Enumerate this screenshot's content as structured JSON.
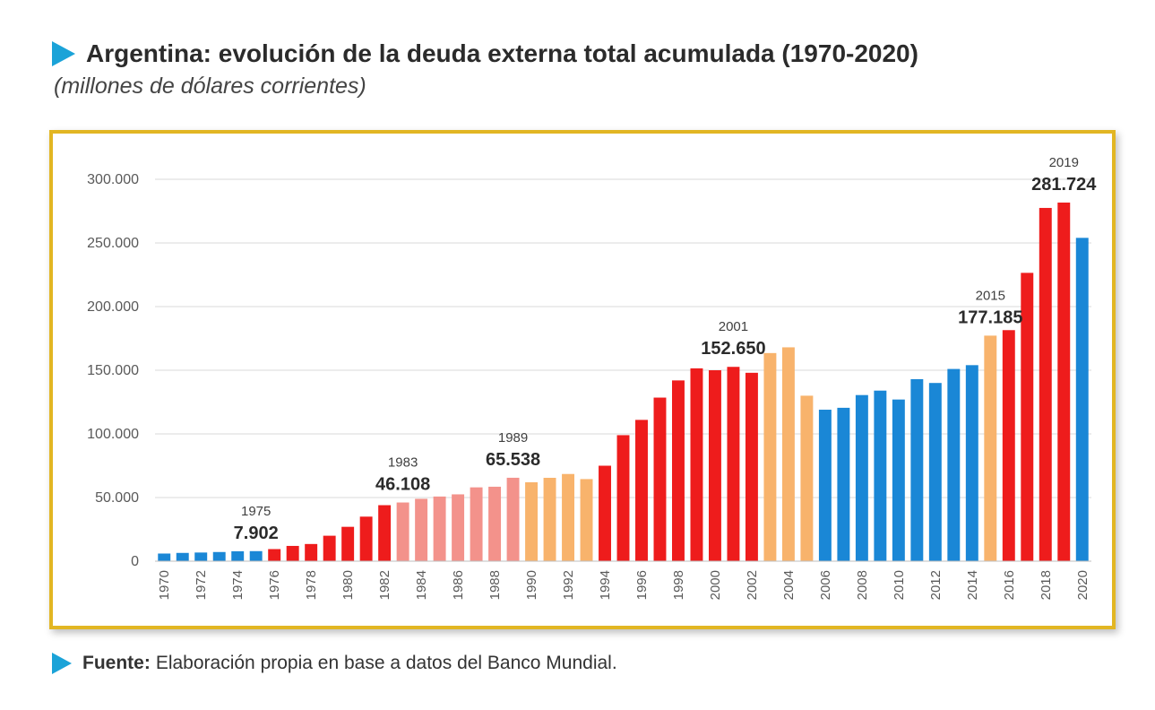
{
  "header": {
    "title": "Argentina: evolución de la deuda externa total acumulada (1970-2020)",
    "subtitle": "(millones de dólares corrientes)"
  },
  "source": {
    "label": "Fuente:",
    "text": "Elaboración propia en base a datos del Banco Mundial."
  },
  "colors": {
    "blue": "#1a87d6",
    "red": "#ee1c1c",
    "pink": "#f3928b",
    "orange": "#f8b36c",
    "frame": "#e2b623",
    "marker": "#1ba3d8"
  },
  "chart_data": {
    "type": "bar",
    "title": "",
    "xlabel": "",
    "ylabel": "",
    "ylim": [
      0,
      300000
    ],
    "yticks": [
      0,
      50000,
      100000,
      150000,
      200000,
      250000,
      300000
    ],
    "ytick_labels": [
      "0",
      "50.000",
      "100.000",
      "150.000",
      "200.000",
      "250.000",
      "300.000"
    ],
    "grid": true,
    "categories": [
      "1970",
      "1971",
      "1972",
      "1973",
      "1974",
      "1975",
      "1976",
      "1977",
      "1978",
      "1979",
      "1980",
      "1981",
      "1982",
      "1983",
      "1984",
      "1985",
      "1986",
      "1987",
      "1988",
      "1989",
      "1990",
      "1991",
      "1992",
      "1993",
      "1994",
      "1995",
      "1996",
      "1997",
      "1998",
      "1999",
      "2000",
      "2001",
      "2002",
      "2003",
      "2004",
      "2005",
      "2006",
      "2007",
      "2008",
      "2009",
      "2010",
      "2011",
      "2012",
      "2013",
      "2014",
      "2015",
      "2016",
      "2017",
      "2018",
      "2019",
      "2020"
    ],
    "x_tick_labels": [
      "1970",
      "1972",
      "1974",
      "1976",
      "1978",
      "1980",
      "1982",
      "1984",
      "1986",
      "1988",
      "1990",
      "1992",
      "1994",
      "1996",
      "1998",
      "2000",
      "2002",
      "2004",
      "2006",
      "2008",
      "2010",
      "2012",
      "2014",
      "2016",
      "2018",
      "2020"
    ],
    "values": [
      6000,
      6500,
      6800,
      7200,
      7800,
      7902,
      9500,
      12000,
      13500,
      20000,
      27000,
      35000,
      44000,
      46108,
      49000,
      50800,
      52500,
      58000,
      58500,
      65538,
      62000,
      65500,
      68500,
      64500,
      75000,
      99000,
      111000,
      128500,
      142000,
      151500,
      150000,
      152650,
      148000,
      163500,
      168000,
      130000,
      119000,
      120500,
      130500,
      134000,
      127000,
      143000,
      140000,
      151000,
      154000,
      177185,
      181500,
      226500,
      277500,
      281724,
      254000
    ],
    "color_keys": [
      "blue",
      "blue",
      "blue",
      "blue",
      "blue",
      "blue",
      "red",
      "red",
      "red",
      "red",
      "red",
      "red",
      "red",
      "pink",
      "pink",
      "pink",
      "pink",
      "pink",
      "pink",
      "pink",
      "orange",
      "orange",
      "orange",
      "orange",
      "red",
      "red",
      "red",
      "red",
      "red",
      "red",
      "red",
      "red",
      "red",
      "orange",
      "orange",
      "orange",
      "blue",
      "blue",
      "blue",
      "blue",
      "blue",
      "blue",
      "blue",
      "blue",
      "blue",
      "orange",
      "red",
      "red",
      "red",
      "red",
      "blue"
    ],
    "annotations": [
      {
        "year": "1975",
        "year_label": "1975",
        "value_label": "7.902",
        "index": 5
      },
      {
        "year": "1983",
        "year_label": "1983",
        "value_label": "46.108",
        "index": 13
      },
      {
        "year": "1989",
        "year_label": "1989",
        "value_label": "65.538",
        "index": 19
      },
      {
        "year": "2001",
        "year_label": "2001",
        "value_label": "152.650",
        "index": 31
      },
      {
        "year": "2015",
        "year_label": "2015",
        "value_label": "177.185",
        "index": 45
      },
      {
        "year": "2019",
        "year_label": "2019",
        "value_label": "281.724",
        "index": 49
      }
    ]
  }
}
